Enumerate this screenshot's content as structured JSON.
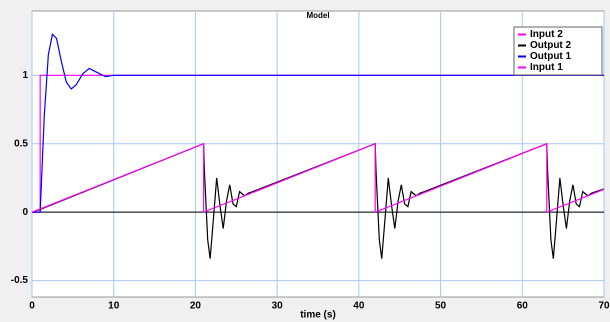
{
  "chart_data": {
    "type": "line",
    "title": "Model",
    "x_label": "time (s)",
    "xlim": [
      0,
      70
    ],
    "xticks": [
      0,
      10,
      20,
      30,
      40,
      50,
      60,
      70
    ],
    "ylim": [
      -0.62,
      1.47
    ],
    "yticks": [
      -0.5,
      0,
      0.5,
      1
    ],
    "grid": true,
    "legend": "upper right",
    "series": [
      {
        "name": "Input 2",
        "color": "#ff00ff",
        "x": [
          0,
          21,
          21,
          42,
          42,
          63,
          63,
          70
        ],
        "values": [
          0,
          0.5,
          0,
          0.5,
          0,
          0.5,
          0,
          0.167
        ]
      },
      {
        "name": "Output 2",
        "color": "#000000",
        "x": [
          0,
          1,
          21,
          21.1,
          21.5,
          21.8,
          22.2,
          22.6,
          23,
          23.4,
          23.8,
          24.2,
          24.6,
          25,
          25.4,
          26,
          26.5,
          27,
          42,
          42.1,
          42.5,
          42.8,
          43.2,
          43.6,
          44,
          44.4,
          44.8,
          45.2,
          45.6,
          46,
          46.4,
          47,
          47.5,
          48,
          63,
          63.1,
          63.5,
          63.8,
          64.2,
          64.6,
          65,
          65.4,
          65.8,
          66.2,
          66.6,
          67,
          67.4,
          68,
          68.5,
          69,
          70
        ],
        "values": [
          0,
          0.02,
          0.5,
          0.3,
          -0.2,
          -0.34,
          -0.05,
          0.25,
          0.05,
          -0.12,
          0.08,
          0.2,
          0.06,
          0.04,
          0.15,
          0.12,
          0.14,
          0.15,
          0.5,
          0.3,
          -0.2,
          -0.34,
          -0.05,
          0.25,
          0.05,
          -0.12,
          0.08,
          0.2,
          0.06,
          0.04,
          0.15,
          0.12,
          0.14,
          0.15,
          0.5,
          0.3,
          -0.2,
          -0.34,
          -0.05,
          0.25,
          0.05,
          -0.12,
          0.08,
          0.2,
          0.06,
          0.04,
          0.15,
          0.12,
          0.14,
          0.15,
          0.17
        ]
      },
      {
        "name": "Output 1",
        "color": "#0000ff",
        "x": [
          0,
          1,
          1.5,
          2,
          2.5,
          3,
          3.6,
          4.2,
          4.8,
          5.4,
          6.2,
          7,
          8,
          9,
          10,
          12,
          70
        ],
        "values": [
          0,
          0,
          0.7,
          1.15,
          1.3,
          1.27,
          1.1,
          0.95,
          0.9,
          0.93,
          1.01,
          1.05,
          1.02,
          0.99,
          1.0,
          1.0,
          1.0
        ]
      },
      {
        "name": "Input 1",
        "color": "#ff00ff",
        "x": [
          0,
          1,
          1,
          70
        ],
        "values": [
          0,
          0,
          1,
          1
        ]
      }
    ]
  }
}
